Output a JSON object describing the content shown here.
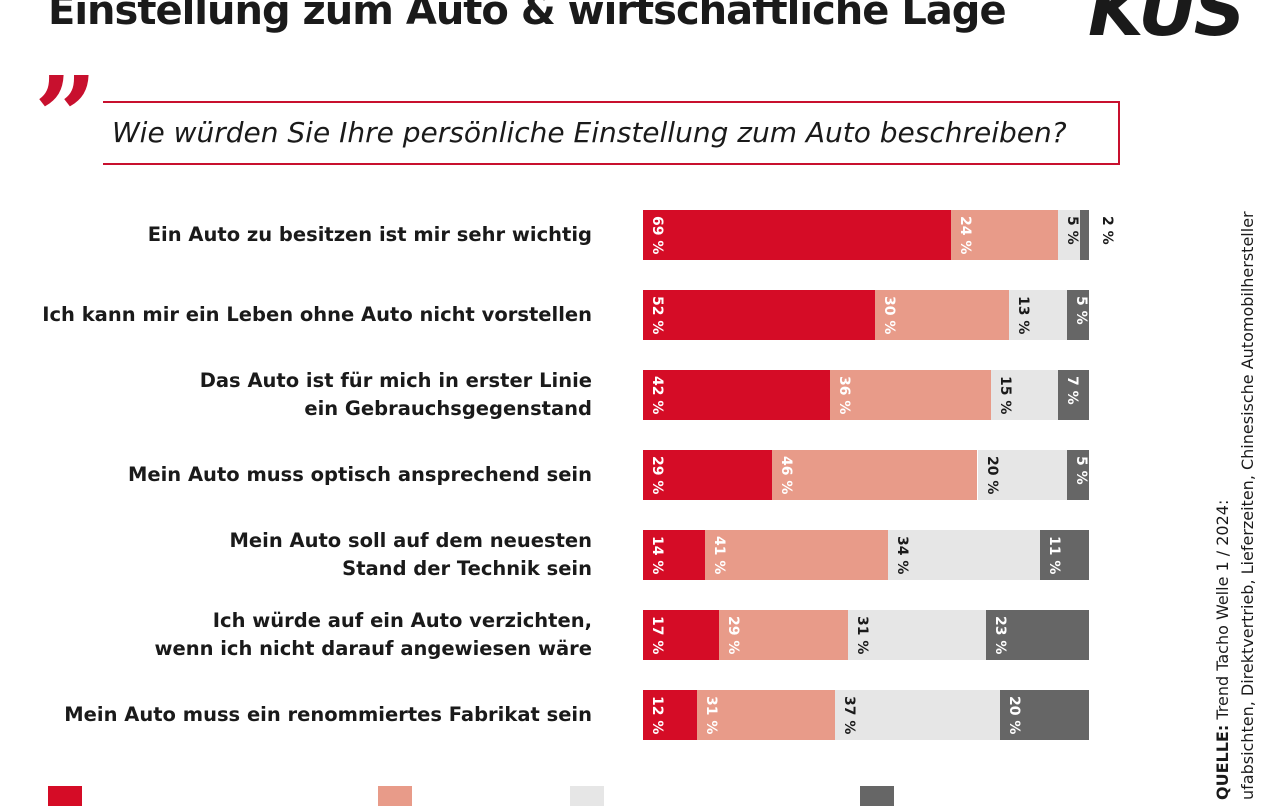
{
  "header": {
    "title": "Einstellung zum Auto & wirtschaftliche Lage",
    "logo": "KUS"
  },
  "question": "Wie würden Sie Ihre persönliche Einstellung zum Auto beschreiben?",
  "source": {
    "label": "QUELLE:",
    "line1": "Trend Tacho Welle 1 / 2024:",
    "line2": "ufabsichten, Direktvertrieb, Lieferzeiten, Chinesische Automobilhersteller"
  },
  "chart_data": {
    "type": "bar",
    "orientation": "horizontal-stacked",
    "unit": "%",
    "categories": [
      [
        "Ein Auto zu besitzen ist mir sehr wichtig"
      ],
      [
        "Ich kann mir ein Leben ohne Auto nicht vorstellen"
      ],
      [
        "Das Auto ist für mich in erster Linie",
        "ein Gebrauchsgegenstand"
      ],
      [
        "Mein Auto muss optisch ansprechend sein"
      ],
      [
        "Mein Auto soll auf dem neuesten",
        "Stand der Technik sein"
      ],
      [
        "Ich würde auf ein Auto verzichten,",
        "wenn ich nicht darauf angewiesen wäre"
      ],
      [
        "Mein Auto muss ein renommiertes Fabrikat sein"
      ]
    ],
    "series": [
      {
        "color": "#d50c26",
        "label_color": "#ffffff",
        "values": [
          69,
          52,
          42,
          29,
          14,
          17,
          12
        ]
      },
      {
        "color": "#e89b89",
        "label_color": "#ffffff",
        "values": [
          24,
          30,
          36,
          46,
          41,
          29,
          31
        ]
      },
      {
        "color": "#e6e6e6",
        "label_color": "#1a1a1a",
        "values": [
          5,
          13,
          15,
          20,
          34,
          31,
          37
        ]
      },
      {
        "color": "#666666",
        "label_color": "#ffffff",
        "values": [
          2,
          5,
          7,
          5,
          11,
          23,
          20
        ]
      }
    ],
    "legend_placement": "bottom",
    "grid": false
  }
}
